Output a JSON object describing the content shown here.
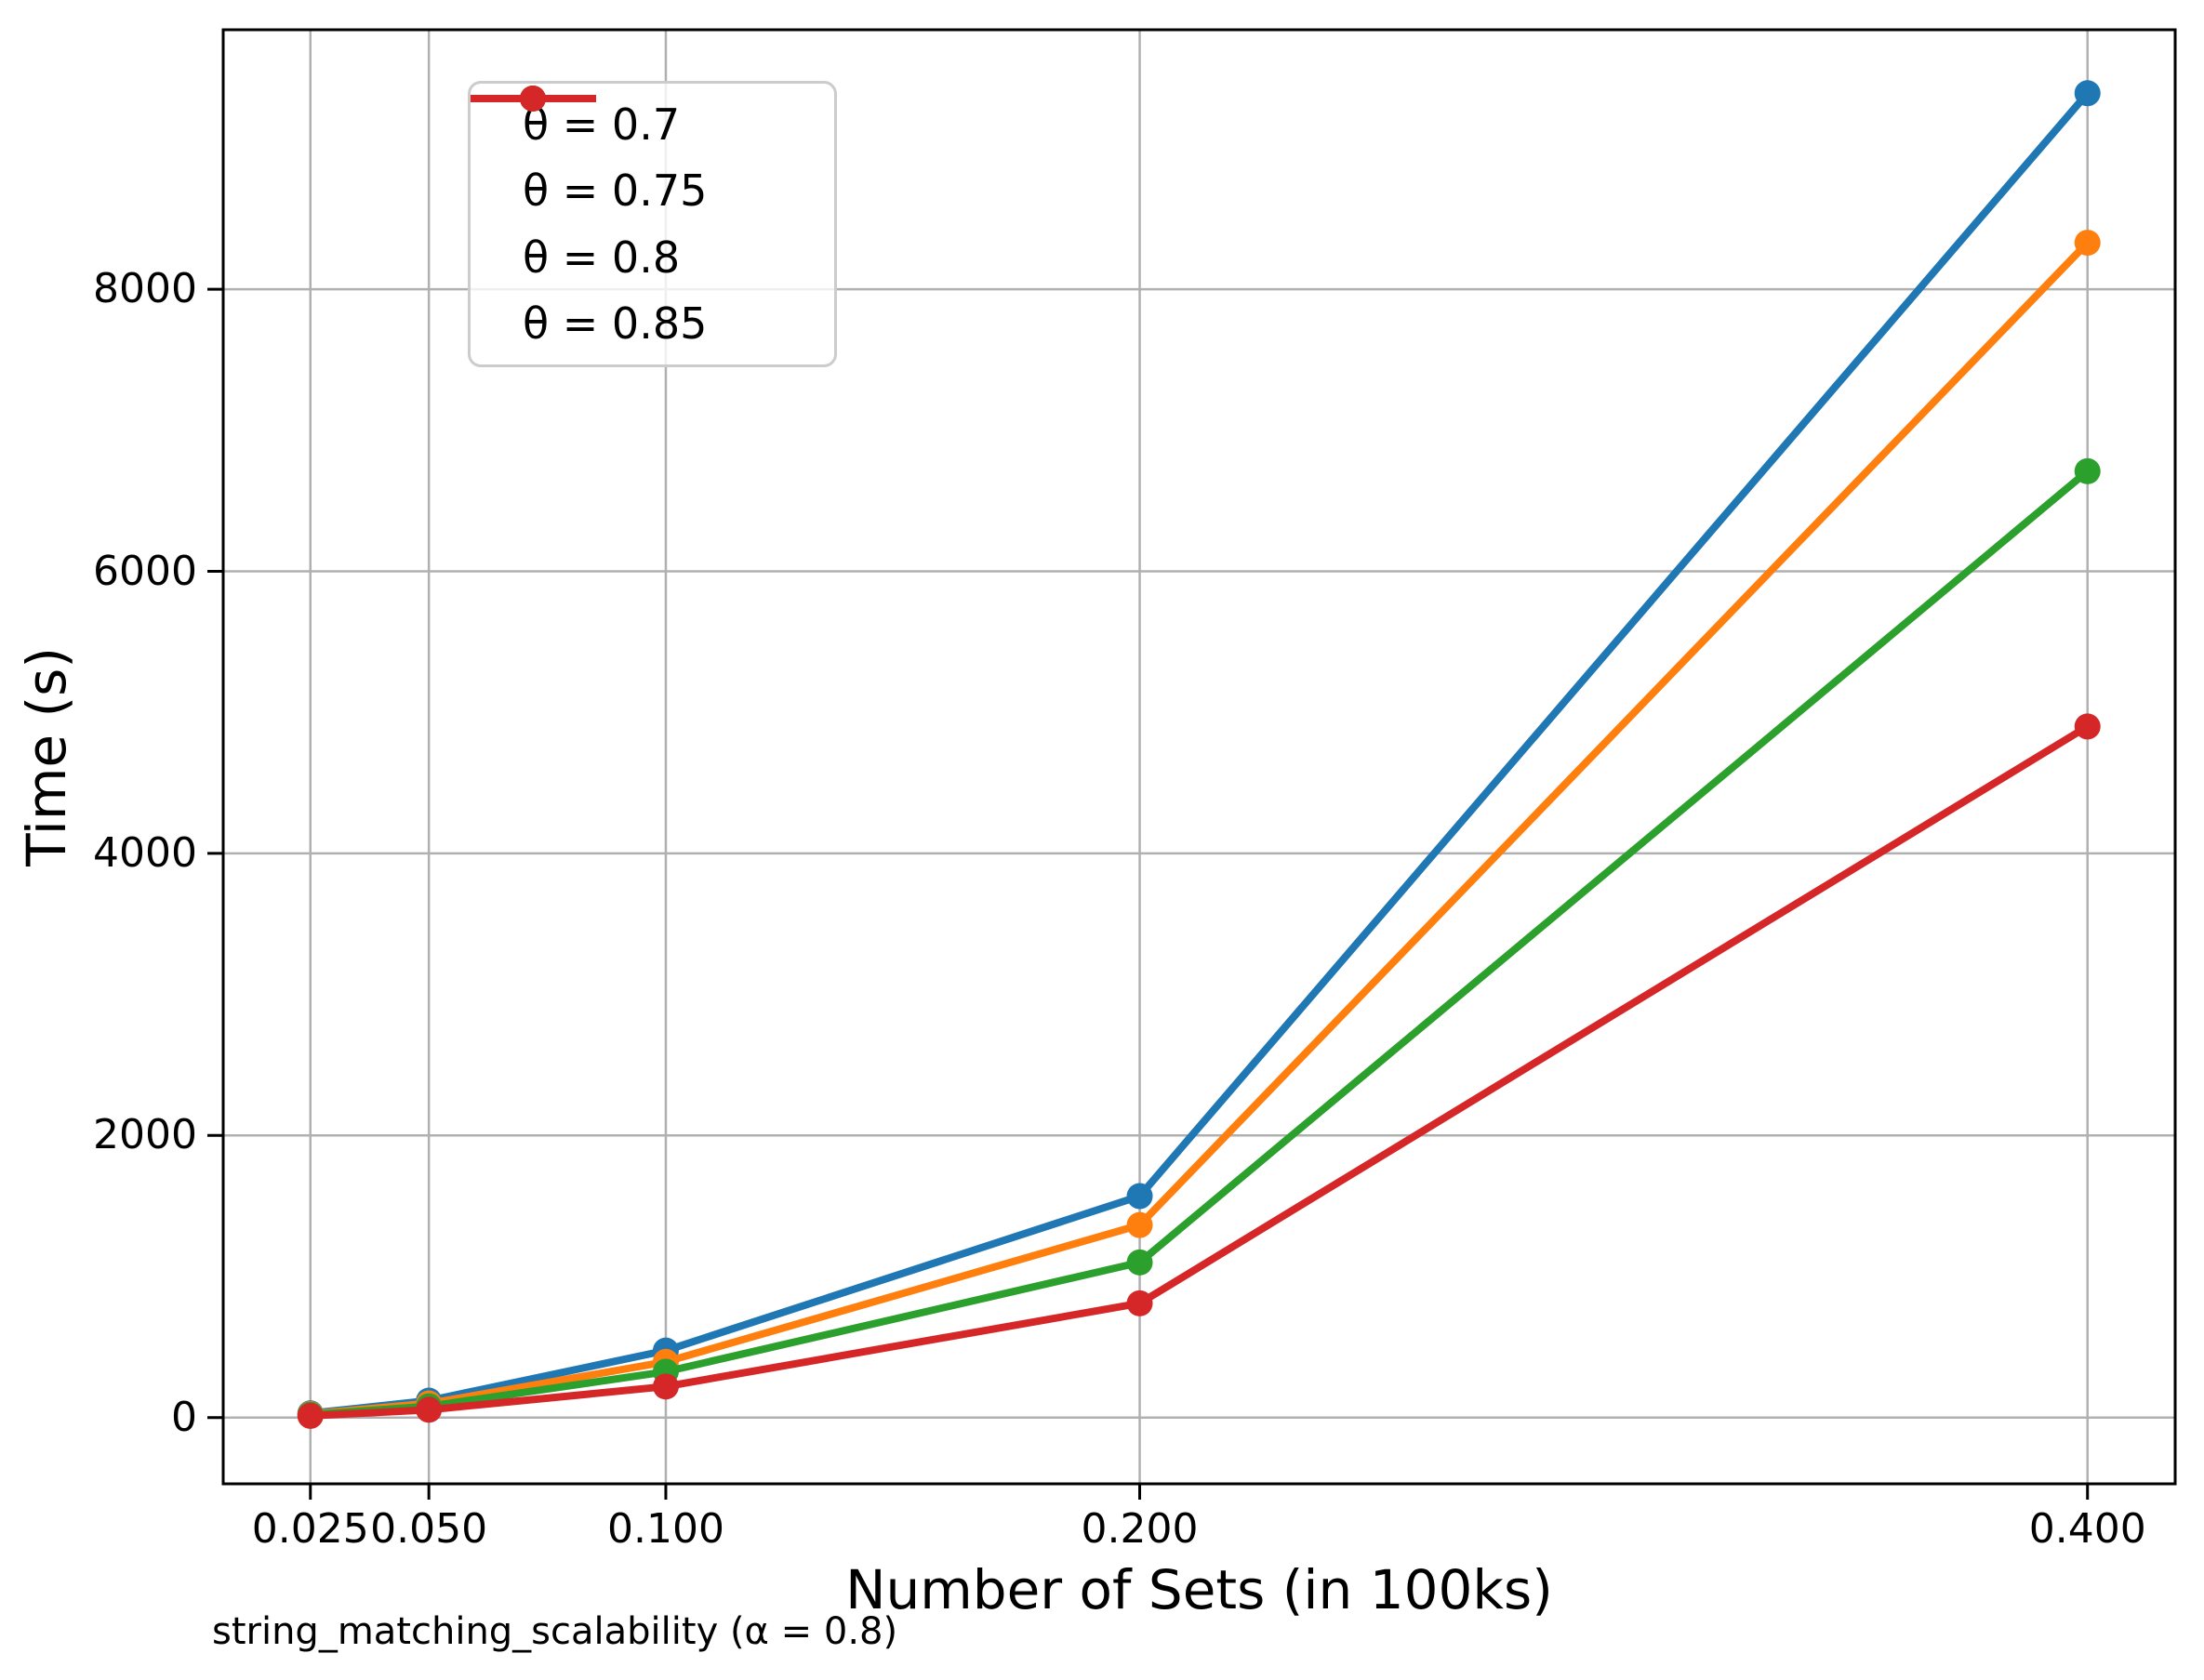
{
  "figure": {
    "caption": "string_matching_scalability (α = 0.8)"
  },
  "chart_data": {
    "type": "line",
    "title": "",
    "xlabel": "Number of Sets (in 100ks)",
    "ylabel": "Time (s)",
    "x": [
      0.025,
      0.05,
      0.1,
      0.2,
      0.4
    ],
    "x_tick_labels": [
      "0.025",
      "0.050",
      "0.100",
      "0.200",
      "0.400"
    ],
    "y_ticks": [
      0,
      2000,
      4000,
      6000,
      8000
    ],
    "y_tick_labels": [
      "0",
      "2000",
      "4000",
      "6000",
      "8000"
    ],
    "xlim": [
      0.0066,
      0.4185
    ],
    "ylim": [
      -470,
      9840
    ],
    "grid": true,
    "legend_position": "upper left",
    "series": [
      {
        "name": "θ = 0.7",
        "color": "#1f77b4",
        "values": [
          30,
          120,
          475,
          1570,
          9390
        ]
      },
      {
        "name": "θ = 0.75",
        "color": "#ff7f0e",
        "values": [
          25,
          100,
          395,
          1365,
          8330
        ]
      },
      {
        "name": "θ = 0.8",
        "color": "#2ca02c",
        "values": [
          20,
          80,
          325,
          1100,
          6710
        ]
      },
      {
        "name": "θ = 0.85",
        "color": "#d62728",
        "values": [
          12,
          55,
          220,
          810,
          4900
        ]
      }
    ],
    "style": {
      "grid_color": "#b0b0b0",
      "spine_color": "#000000",
      "line_width": 8,
      "marker_radius": 14
    }
  }
}
